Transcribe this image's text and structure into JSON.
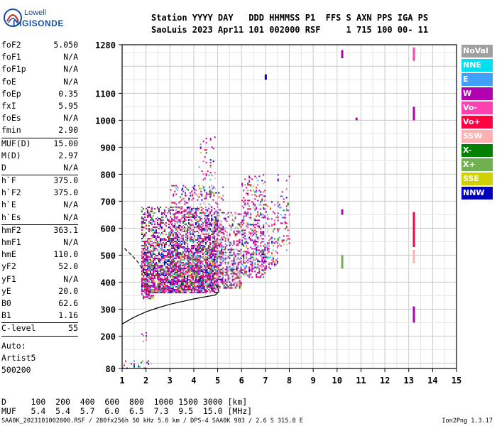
{
  "logo": {
    "line1": "Lowell",
    "line2": "DIGISONDE"
  },
  "header": {
    "line1": "Station YYYY DAY   DDD HHMMSS P1  FFS S AXN PPS IGA PS",
    "line2": "SaoLuis 2023 Apr11 101 002000 RSF     1 715 100 00- 11"
  },
  "params_group1": [
    {
      "name": "foF2",
      "value": "5.050"
    },
    {
      "name": "foF1",
      "value": "N/A"
    },
    {
      "name": "foF1p",
      "value": "N/A"
    },
    {
      "name": "foE",
      "value": "N/A"
    },
    {
      "name": "foEp",
      "value": "0.35"
    },
    {
      "name": "fxI",
      "value": "5.95"
    },
    {
      "name": "foEs",
      "value": "N/A"
    },
    {
      "name": "fmin",
      "value": "2.90"
    }
  ],
  "params_group2": [
    {
      "name": "MUF(D)",
      "value": "15.00"
    },
    {
      "name": "M(D)",
      "value": "2.97"
    },
    {
      "name": "D",
      "value": "N/A"
    }
  ],
  "params_group3": [
    {
      "name": "h`F",
      "value": "375.0"
    },
    {
      "name": "h`F2",
      "value": "375.0"
    },
    {
      "name": "h`E",
      "value": "N/A"
    },
    {
      "name": "h`Es",
      "value": "N/A"
    }
  ],
  "params_group4": [
    {
      "name": "hmF2",
      "value": "363.1"
    },
    {
      "name": "hmF1",
      "value": "N/A"
    },
    {
      "name": "hmE",
      "value": "110.0"
    },
    {
      "name": "yF2",
      "value": "52.0"
    },
    {
      "name": "yF1",
      "value": "N/A"
    },
    {
      "name": "yE",
      "value": "20.0"
    },
    {
      "name": "B0",
      "value": "62.6"
    },
    {
      "name": "B1",
      "value": "1.16"
    }
  ],
  "params_group5": [
    {
      "name": "C-level",
      "value": "55"
    }
  ],
  "auto": {
    "line1": "Auto:",
    "line2": "Artist5",
    "line3": "500200"
  },
  "legend": [
    {
      "label": "NoVal",
      "color": "#a0a0a0"
    },
    {
      "label": "NNE",
      "color": "#00e0f0"
    },
    {
      "label": "E",
      "color": "#40a0ff"
    },
    {
      "label": "W",
      "color": "#b000b0"
    },
    {
      "label": "Vo-",
      "color": "#ff40b0"
    },
    {
      "label": "Vo+",
      "color": "#ff0040"
    },
    {
      "label": "SSW",
      "color": "#ffb0b0"
    },
    {
      "label": "X-",
      "color": "#008000"
    },
    {
      "label": "X+",
      "color": "#70b050"
    },
    {
      "label": "SSE",
      "color": "#d0d000"
    },
    {
      "label": "NNW",
      "color": "#0000c0"
    }
  ],
  "muf_table": {
    "d_row": "D     100  200  400  600  800  1000 1500 3000 [km]",
    "muf_row": "MUF   5.4  5.4  5.7  6.0  6.5  7.3  9.5  15.0 [MHz]"
  },
  "footer": "SAA0K_2023101002000.RSF / 280fx256h 50 kHz 5.0 km / DPS-4 SAA0K 903 / 2.6 S 315.8 E",
  "version": "Ion2Png 1.3.17",
  "chart_data": {
    "type": "scatter",
    "xlabel": "",
    "ylabel": "",
    "xlim": [
      1,
      15
    ],
    "ylim": [
      80,
      1280
    ],
    "x_ticks": [
      1,
      2,
      3,
      4,
      5,
      6,
      7,
      8,
      9,
      10,
      11,
      12,
      13,
      14,
      15
    ],
    "y_ticks": [
      80,
      200,
      300,
      400,
      500,
      600,
      700,
      800,
      900,
      1000,
      1100,
      1280
    ],
    "grid": true,
    "series": [
      {
        "name": "NoVal",
        "color": "#a0a0a0"
      },
      {
        "name": "NNE",
        "color": "#00e0f0"
      },
      {
        "name": "E",
        "color": "#40a0ff"
      },
      {
        "name": "W",
        "color": "#b000b0"
      },
      {
        "name": "Vo-",
        "color": "#ff40b0"
      },
      {
        "name": "Vo+",
        "color": "#ff0040"
      },
      {
        "name": "SSW",
        "color": "#ffb0b0"
      },
      {
        "name": "X-",
        "color": "#008000"
      },
      {
        "name": "X+",
        "color": "#70b050"
      },
      {
        "name": "SSE",
        "color": "#d0d000"
      },
      {
        "name": "NNW",
        "color": "#0000c0"
      }
    ],
    "clusters": [
      {
        "x": [
          1.8,
          5.0
        ],
        "y": [
          360,
          680
        ],
        "density": 0.9
      },
      {
        "x": [
          3.0,
          5.2
        ],
        "y": [
          420,
          760
        ],
        "density": 0.35
      },
      {
        "x": [
          3.5,
          5.0
        ],
        "y": [
          720,
          760
        ],
        "density": 0.25
      },
      {
        "x": [
          4.2,
          4.9
        ],
        "y": [
          780,
          940
        ],
        "density": 0.15
      },
      {
        "x": [
          5.0,
          6.0
        ],
        "y": [
          380,
          660
        ],
        "density": 0.55
      },
      {
        "x": [
          6.0,
          7.0
        ],
        "y": [
          420,
          800
        ],
        "density": 0.45
      },
      {
        "x": [
          7.0,
          7.5
        ],
        "y": [
          450,
          700
        ],
        "density": 0.3
      },
      {
        "x": [
          7.5,
          8.0
        ],
        "y": [
          520,
          800
        ],
        "density": 0.2
      },
      {
        "x": [
          1.8,
          2.3
        ],
        "y": [
          340,
          400
        ],
        "density": 0.6
      },
      {
        "x": [
          1.0,
          2.2
        ],
        "y": [
          80,
          110
        ],
        "density": 0.25
      },
      {
        "x": [
          1.8,
          2.0
        ],
        "y": [
          180,
          220
        ],
        "density": 0.2
      }
    ],
    "vertical_streaks": [
      {
        "x": 13.2,
        "y": [
          1220,
          1270
        ],
        "color": "#ff40b0"
      },
      {
        "x": 13.2,
        "y": [
          1000,
          1050
        ],
        "color": "#b000b0"
      },
      {
        "x": 13.2,
        "y": [
          600,
          660
        ],
        "color": "#ff0040"
      },
      {
        "x": 13.2,
        "y": [
          530,
          620
        ],
        "color": "#ff0040"
      },
      {
        "x": 13.2,
        "y": [
          470,
          520
        ],
        "color": "#ffb0b0"
      },
      {
        "x": 13.2,
        "y": [
          250,
          310
        ],
        "color": "#b000b0"
      },
      {
        "x": 10.2,
        "y": [
          1230,
          1260
        ],
        "color": "#b000b0"
      },
      {
        "x": 10.2,
        "y": [
          650,
          670
        ],
        "color": "#b000b0"
      },
      {
        "x": 10.2,
        "y": [
          450,
          500
        ],
        "color": "#70b050"
      },
      {
        "x": 7.0,
        "y": [
          1150,
          1170
        ],
        "color": "#0000c0"
      },
      {
        "x": 10.8,
        "y": [
          1000,
          1010
        ],
        "color": "#b000b0"
      }
    ],
    "profile_line": [
      [
        1.0,
        245
      ],
      [
        1.5,
        270
      ],
      [
        2.0,
        290
      ],
      [
        2.5,
        305
      ],
      [
        3.0,
        318
      ],
      [
        3.5,
        328
      ],
      [
        4.0,
        338
      ],
      [
        4.5,
        346
      ],
      [
        4.9,
        352
      ],
      [
        5.05,
        365
      ],
      [
        5.0,
        380
      ],
      [
        4.9,
        390
      ]
    ],
    "dashed_line": [
      [
        1.1,
        525
      ],
      [
        1.4,
        500
      ],
      [
        1.7,
        470
      ],
      [
        1.9,
        440
      ],
      [
        2.05,
        420
      ],
      [
        2.2,
        408
      ]
    ]
  }
}
